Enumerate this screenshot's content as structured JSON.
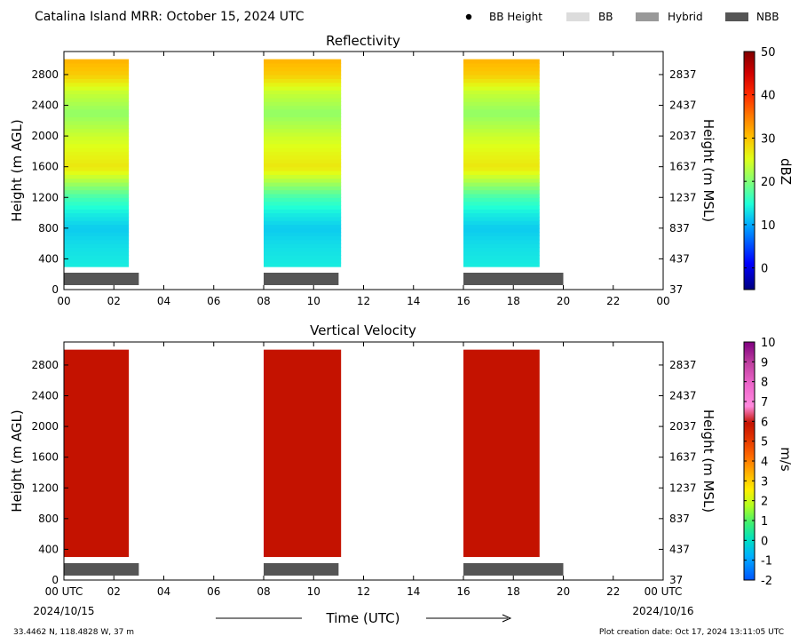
{
  "header": {
    "title": "Catalina Island MRR:  October 15, 2024 UTC",
    "legend": [
      {
        "label": "BB Height",
        "marker": "dot",
        "color": "#000000"
      },
      {
        "label": "BB",
        "marker": "rect",
        "color": "#dcdcdc"
      },
      {
        "label": "Hybrid",
        "marker": "rect",
        "color": "#999999"
      },
      {
        "label": "NBB",
        "marker": "rect",
        "color": "#555555"
      }
    ]
  },
  "footer": {
    "x_axis_label": "Time (UTC)",
    "start_date": "2024/10/15",
    "end_date": "2024/10/16",
    "location": "33.4462 N, 118.4828 W, 37 m",
    "creation": "Plot creation date: Oct 17, 2024 13:11:05 UTC"
  },
  "colors": {
    "nbb_bar": "#555555",
    "velocity_fill": "#c41200"
  },
  "chart_data": [
    {
      "type": "heatmap",
      "title": "Reflectivity",
      "ylabel": "Height (m AGL)",
      "ylabel_right": "Height (m MSL)",
      "xlim": [
        0,
        24
      ],
      "ylim": [
        0,
        3100
      ],
      "x_tick_labels": [
        "00",
        "02",
        "04",
        "06",
        "08",
        "10",
        "12",
        "14",
        "16",
        "18",
        "20",
        "22",
        "00"
      ],
      "y_ticks": [
        0,
        400,
        800,
        1200,
        1600,
        2000,
        2400,
        2800
      ],
      "y_tick_labels": [
        "0",
        "400",
        "800",
        "1200",
        "1600",
        "2000",
        "2400",
        "2800"
      ],
      "y_right_tick_labels": [
        "37",
        "437",
        "837",
        "1237",
        "1637",
        "2037",
        "2437",
        "2837"
      ],
      "colorbar": {
        "label": "dBZ",
        "min": -5,
        "max": 50,
        "ticks": [
          0,
          10,
          20,
          30,
          40,
          50
        ]
      },
      "data_blocks": [
        {
          "start_hour": 0.0,
          "end_hour": 2.6,
          "bottom_m": 300,
          "top_m": 3000
        },
        {
          "start_hour": 8.0,
          "end_hour": 11.1,
          "bottom_m": 300,
          "top_m": 3000
        },
        {
          "start_hour": 16.0,
          "end_hour": 19.05,
          "bottom_m": 300,
          "top_m": 3000
        }
      ],
      "profile_dbz": [
        {
          "height_m": 300,
          "dbz": 14
        },
        {
          "height_m": 600,
          "dbz": 13
        },
        {
          "height_m": 800,
          "dbz": 12
        },
        {
          "height_m": 1000,
          "dbz": 14
        },
        {
          "height_m": 1200,
          "dbz": 17
        },
        {
          "height_m": 1400,
          "dbz": 22
        },
        {
          "height_m": 1600,
          "dbz": 27
        },
        {
          "height_m": 2000,
          "dbz": 24
        },
        {
          "height_m": 2300,
          "dbz": 21
        },
        {
          "height_m": 2600,
          "dbz": 24
        },
        {
          "height_m": 2800,
          "dbz": 29
        },
        {
          "height_m": 3000,
          "dbz": 31
        }
      ],
      "nbb_segments": [
        {
          "start_hour": 0.0,
          "end_hour": 3.0
        },
        {
          "start_hour": 8.0,
          "end_hour": 11.0
        },
        {
          "start_hour": 16.0,
          "end_hour": 20.0
        }
      ]
    },
    {
      "type": "heatmap",
      "title": "Vertical Velocity",
      "ylabel": "Height (m AGL)",
      "ylabel_right": "Height (m MSL)",
      "xlim": [
        0,
        24
      ],
      "ylim": [
        0,
        3100
      ],
      "x_tick_labels": [
        "00 UTC",
        "02",
        "04",
        "06",
        "08",
        "10",
        "12",
        "14",
        "16",
        "18",
        "20",
        "22",
        "00 UTC"
      ],
      "y_ticks": [
        0,
        400,
        800,
        1200,
        1600,
        2000,
        2400,
        2800
      ],
      "y_tick_labels": [
        "0",
        "400",
        "800",
        "1200",
        "1600",
        "2000",
        "2400",
        "2800"
      ],
      "y_right_tick_labels": [
        "37",
        "437",
        "837",
        "1237",
        "1637",
        "2037",
        "2437",
        "2837"
      ],
      "colorbar": {
        "label": "m/s",
        "min": -2,
        "max": 10,
        "ticks": [
          -2,
          -1,
          0,
          1,
          2,
          3,
          4,
          5,
          6,
          7,
          8,
          9,
          10
        ]
      },
      "data_blocks": [
        {
          "start_hour": 0.0,
          "end_hour": 2.6,
          "bottom_m": 300,
          "top_m": 3000,
          "value_ms": 6
        },
        {
          "start_hour": 8.0,
          "end_hour": 11.1,
          "bottom_m": 300,
          "top_m": 3000,
          "value_ms": 6
        },
        {
          "start_hour": 16.0,
          "end_hour": 19.05,
          "bottom_m": 300,
          "top_m": 3000,
          "value_ms": 6
        }
      ],
      "nbb_segments": [
        {
          "start_hour": 0.0,
          "end_hour": 3.0
        },
        {
          "start_hour": 8.0,
          "end_hour": 11.0
        },
        {
          "start_hour": 16.0,
          "end_hour": 20.0
        }
      ]
    }
  ]
}
